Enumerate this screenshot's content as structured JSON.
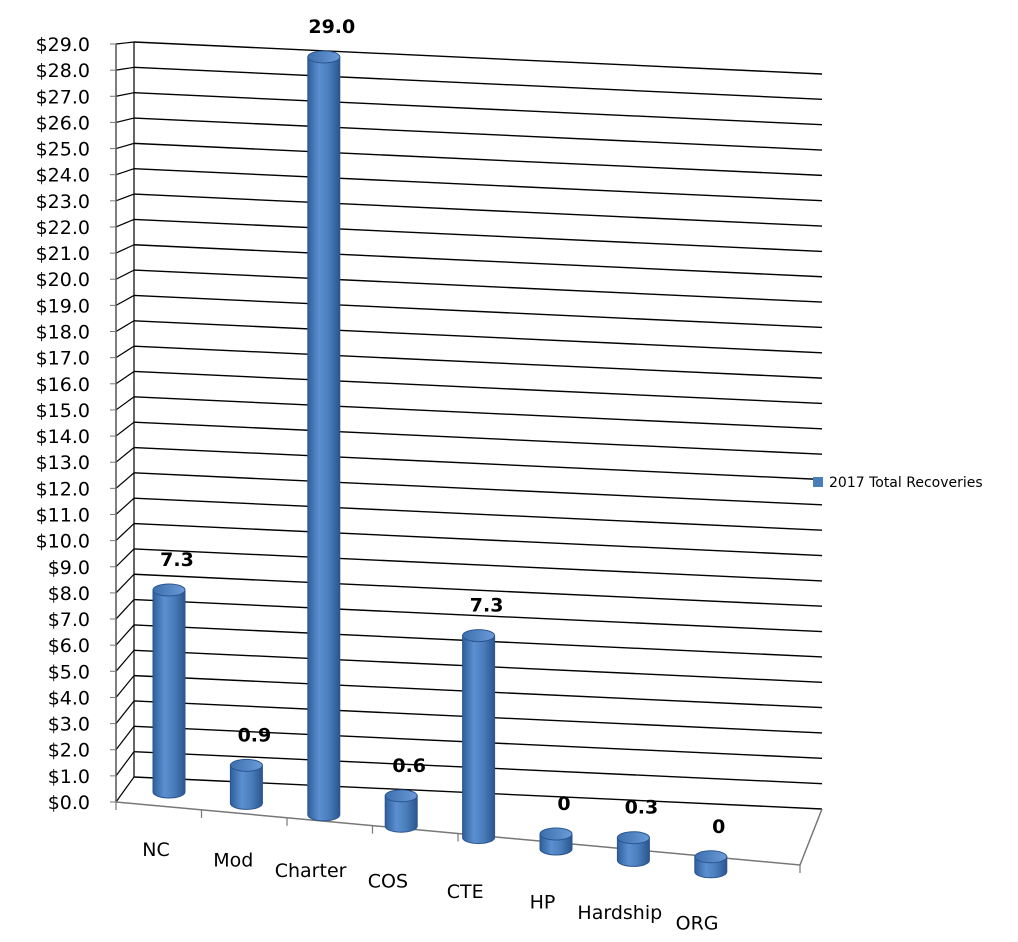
{
  "chart_data": {
    "type": "bar",
    "style": "3d-cylinder",
    "categories": [
      "NC",
      "Mod",
      "Charter",
      "COS",
      "CTE",
      "HP",
      "Hardship",
      "ORG"
    ],
    "series": [
      {
        "name": "2017 Total Recoveries",
        "color": "#4a7ebb",
        "values": [
          7.3,
          0.9,
          29.0,
          0.6,
          7.3,
          0,
          0.3,
          0
        ],
        "data_labels": [
          "7.3",
          "0.9",
          "29.0",
          "0.6",
          "7.3",
          "0",
          "0.3",
          "0"
        ]
      }
    ],
    "y_ticks": [
      "$0.0",
      "$1.0",
      "$2.0",
      "$3.0",
      "$4.0",
      "$5.0",
      "$6.0",
      "$7.0",
      "$8.0",
      "$9.0",
      "$10.0",
      "$11.0",
      "$12.0",
      "$13.0",
      "$14.0",
      "$15.0",
      "$16.0",
      "$17.0",
      "$18.0",
      "$19.0",
      "$20.0",
      "$21.0",
      "$22.0",
      "$23.0",
      "$24.0",
      "$25.0",
      "$26.0",
      "$27.0",
      "$28.0",
      "$29.0"
    ],
    "ylim": [
      0,
      29
    ],
    "grid": true,
    "legend_position": "right",
    "title": "",
    "xlabel": "",
    "ylabel": ""
  }
}
